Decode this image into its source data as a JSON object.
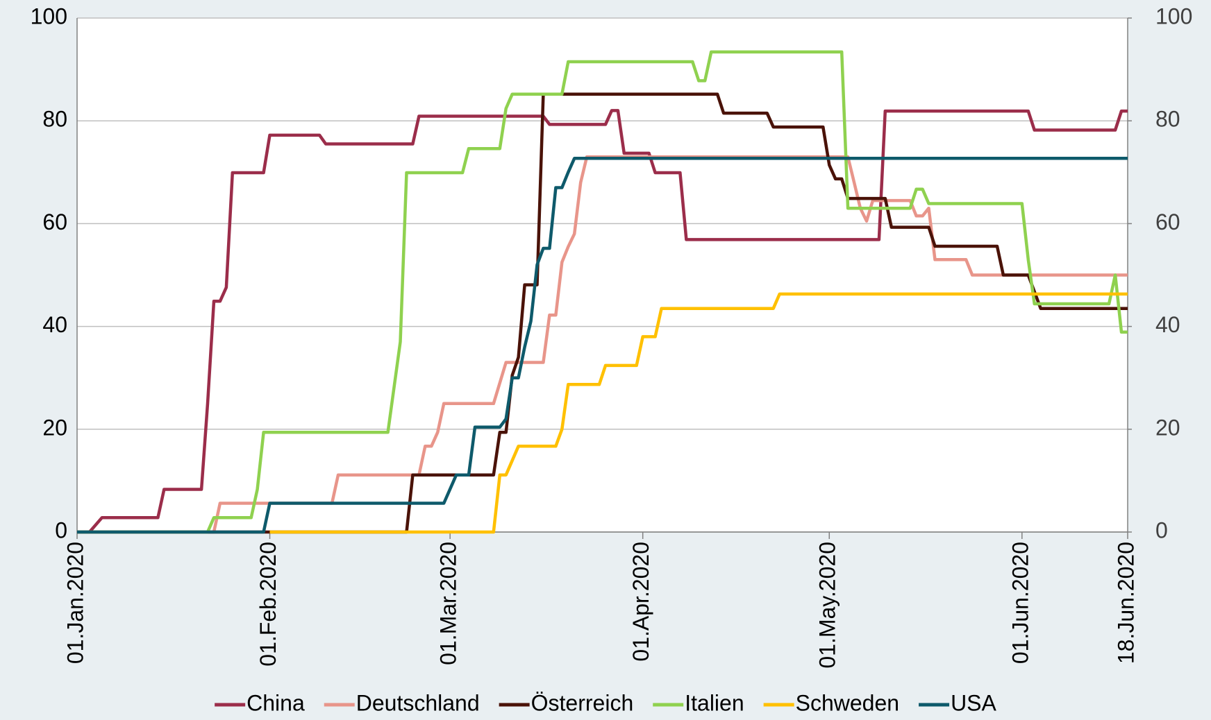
{
  "chart_data": {
    "type": "line",
    "xlim": [
      "2020-01-01",
      "2020-06-18"
    ],
    "xticks": [
      {
        "value": "2020-01-01",
        "label": "01.Jan.2020"
      },
      {
        "value": "2020-02-01",
        "label": "01.Feb.2020"
      },
      {
        "value": "2020-03-01",
        "label": "01.Mar.2020"
      },
      {
        "value": "2020-04-01",
        "label": "01.Apr.2020"
      },
      {
        "value": "2020-05-01",
        "label": "01.May.2020"
      },
      {
        "value": "2020-06-01",
        "label": "01.Jun.2020"
      },
      {
        "value": "2020-06-18",
        "label": "18.Jun.2020"
      }
    ],
    "ylim": [
      0,
      100
    ],
    "yticks": [
      0,
      20,
      40,
      60,
      80,
      100
    ],
    "y2lim": [
      0,
      100
    ],
    "y2ticks": [
      0,
      20,
      40,
      60,
      80,
      100
    ],
    "grid": true,
    "legend": "bottom",
    "series": [
      {
        "name": "China",
        "color": "#9b2d4a",
        "x": [
          "2020-01-01",
          "2020-01-03",
          "2020-01-05",
          "2020-01-14",
          "2020-01-15",
          "2020-01-21",
          "2020-01-22",
          "2020-01-23",
          "2020-01-24",
          "2020-01-25",
          "2020-01-26",
          "2020-01-31",
          "2020-02-01",
          "2020-02-09",
          "2020-02-10",
          "2020-02-24",
          "2020-02-25",
          "2020-03-16",
          "2020-03-17",
          "2020-03-26",
          "2020-03-27",
          "2020-03-28",
          "2020-03-29",
          "2020-04-02",
          "2020-04-03",
          "2020-04-07",
          "2020-04-08",
          "2020-05-09",
          "2020-05-10",
          "2020-06-02",
          "2020-06-03",
          "2020-06-16",
          "2020-06-17",
          "2020-06-18"
        ],
        "values": [
          0,
          0,
          2.8,
          2.8,
          8.3,
          8.3,
          25,
          44.9,
          44.9,
          47.6,
          69.9,
          69.9,
          77.2,
          77.2,
          75.5,
          75.5,
          80.9,
          80.9,
          79.3,
          79.3,
          82,
          82,
          73.7,
          73.7,
          69.9,
          69.9,
          56.9,
          56.9,
          81.9,
          81.9,
          78.2,
          78.2,
          81.9,
          81.9
        ]
      },
      {
        "name": "Deutschland",
        "color": "#e8958a",
        "x": [
          "2020-01-01",
          "2020-01-23",
          "2020-01-24",
          "2020-02-11",
          "2020-02-12",
          "2020-02-25",
          "2020-02-26",
          "2020-02-27",
          "2020-02-28",
          "2020-02-29",
          "2020-03-08",
          "2020-03-10",
          "2020-03-16",
          "2020-03-17",
          "2020-03-18",
          "2020-03-19",
          "2020-03-20",
          "2020-03-21",
          "2020-03-22",
          "2020-03-23",
          "2020-05-04",
          "2020-05-05",
          "2020-05-06",
          "2020-05-07",
          "2020-05-08",
          "2020-05-14",
          "2020-05-15",
          "2020-05-16",
          "2020-05-17",
          "2020-05-18",
          "2020-05-23",
          "2020-05-24",
          "2020-06-18"
        ],
        "values": [
          0,
          0,
          5.6,
          5.6,
          11.1,
          11.1,
          16.7,
          16.7,
          19.4,
          25,
          25,
          33,
          33,
          42.2,
          42.2,
          52.5,
          55.5,
          58,
          68,
          73,
          73,
          68,
          63,
          60.5,
          64.5,
          64.5,
          61.5,
          61.5,
          63,
          53,
          53,
          50,
          50
        ]
      },
      {
        "name": "Österreich",
        "color": "#4a1208",
        "x": [
          "2020-01-01",
          "2020-02-23",
          "2020-02-24",
          "2020-03-08",
          "2020-03-09",
          "2020-03-10",
          "2020-03-11",
          "2020-03-12",
          "2020-03-13",
          "2020-03-15",
          "2020-03-16",
          "2020-04-13",
          "2020-04-14",
          "2020-04-21",
          "2020-04-22",
          "2020-04-30",
          "2020-05-01",
          "2020-05-02",
          "2020-05-03",
          "2020-05-04",
          "2020-05-10",
          "2020-05-11",
          "2020-05-17",
          "2020-05-18",
          "2020-05-28",
          "2020-05-29",
          "2020-06-02",
          "2020-06-04",
          "2020-06-18"
        ],
        "values": [
          0,
          0,
          11.1,
          11.1,
          19.4,
          19.4,
          30.5,
          34,
          48.1,
          48.1,
          85.2,
          85.2,
          81.5,
          81.5,
          78.8,
          78.8,
          71.4,
          68.7,
          68.7,
          64.9,
          64.9,
          59.3,
          59.3,
          55.6,
          55.6,
          50,
          50,
          43.5,
          43.5
        ]
      },
      {
        "name": "Italien",
        "color": "#8fd14f",
        "x": [
          "2020-01-01",
          "2020-01-22",
          "2020-01-23",
          "2020-01-29",
          "2020-01-30",
          "2020-01-31",
          "2020-02-20",
          "2020-02-22",
          "2020-02-23",
          "2020-03-03",
          "2020-03-04",
          "2020-03-09",
          "2020-03-10",
          "2020-03-11",
          "2020-03-19",
          "2020-03-20",
          "2020-04-09",
          "2020-04-10",
          "2020-04-11",
          "2020-04-12",
          "2020-05-03",
          "2020-05-04",
          "2020-05-14",
          "2020-05-15",
          "2020-05-16",
          "2020-05-17",
          "2020-06-01",
          "2020-06-02",
          "2020-06-03",
          "2020-06-15",
          "2020-06-16",
          "2020-06-17",
          "2020-06-18"
        ],
        "values": [
          0,
          0,
          2.8,
          2.8,
          8.3,
          19.4,
          19.4,
          37,
          69.9,
          69.9,
          74.6,
          74.6,
          82.4,
          85.2,
          85.2,
          91.5,
          91.5,
          87.8,
          87.8,
          93.4,
          93.4,
          63,
          63,
          66.7,
          66.7,
          63.9,
          63.9,
          53,
          44.4,
          44.4,
          50,
          38.9,
          38.9
        ]
      },
      {
        "name": "Schweden",
        "color": "#ffc000",
        "x": [
          "2020-02-01",
          "2020-03-08",
          "2020-03-09",
          "2020-03-10",
          "2020-03-12",
          "2020-03-18",
          "2020-03-19",
          "2020-03-20",
          "2020-03-25",
          "2020-03-26",
          "2020-03-31",
          "2020-04-01",
          "2020-04-03",
          "2020-04-04",
          "2020-04-22",
          "2020-04-23",
          "2020-06-18"
        ],
        "values": [
          0,
          0,
          11.1,
          11.1,
          16.7,
          16.7,
          20,
          28.7,
          28.7,
          32.4,
          32.4,
          38,
          38,
          43.5,
          43.5,
          46.3,
          46.3
        ]
      },
      {
        "name": "USA",
        "color": "#0e5a6b",
        "x": [
          "2020-01-01",
          "2020-01-31",
          "2020-02-01",
          "2020-02-29",
          "2020-03-02",
          "2020-03-04",
          "2020-03-05",
          "2020-03-09",
          "2020-03-10",
          "2020-03-11",
          "2020-03-12",
          "2020-03-13",
          "2020-03-14",
          "2020-03-15",
          "2020-03-16",
          "2020-03-17",
          "2020-03-18",
          "2020-03-19",
          "2020-03-20",
          "2020-03-21",
          "2020-06-18"
        ],
        "values": [
          0,
          0,
          5.6,
          5.6,
          11.1,
          11.1,
          20.4,
          20.4,
          22,
          30,
          30,
          36,
          41,
          52,
          55.2,
          55.2,
          67,
          67,
          70,
          72.7,
          72.7
        ]
      }
    ]
  }
}
